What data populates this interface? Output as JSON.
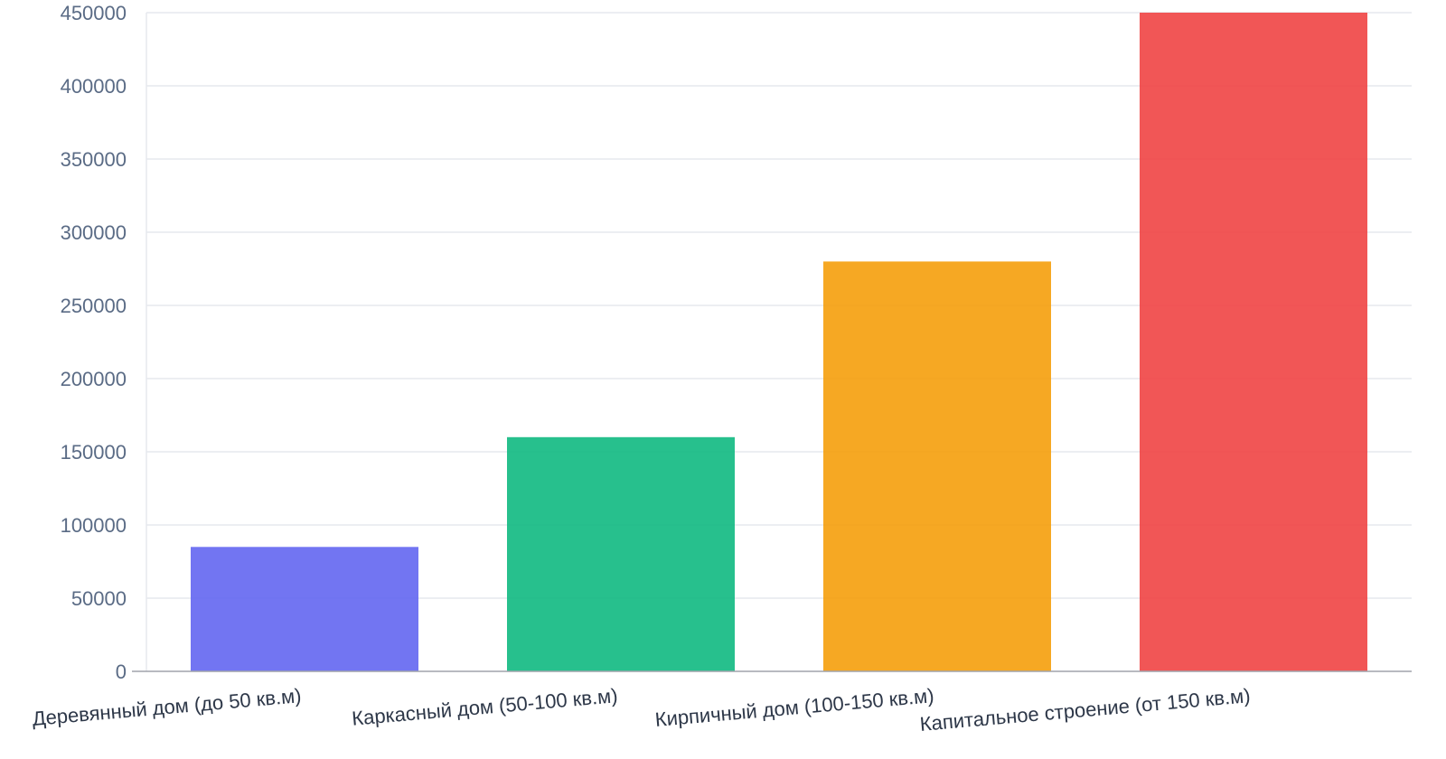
{
  "chart_data": {
    "type": "bar",
    "categories": [
      "Деревянный дом (до 50 кв.м)",
      "Каркасный дом (50-100 кв.м)",
      "Кирпичный дом (100-150 кв.м)",
      "Капитальное строение (от 150 кв.м)"
    ],
    "values": [
      85000,
      160000,
      280000,
      450000
    ],
    "colors": [
      "#6366f1",
      "#10b981",
      "#f59e0b",
      "#ef4444"
    ],
    "ylim": [
      0,
      450000
    ],
    "yticks": [
      "0",
      "50000",
      "100000",
      "150000",
      "200000",
      "250000",
      "300000",
      "350000",
      "400000",
      "450000"
    ],
    "grid": true,
    "title": "",
    "xlabel": "",
    "ylabel": ""
  }
}
